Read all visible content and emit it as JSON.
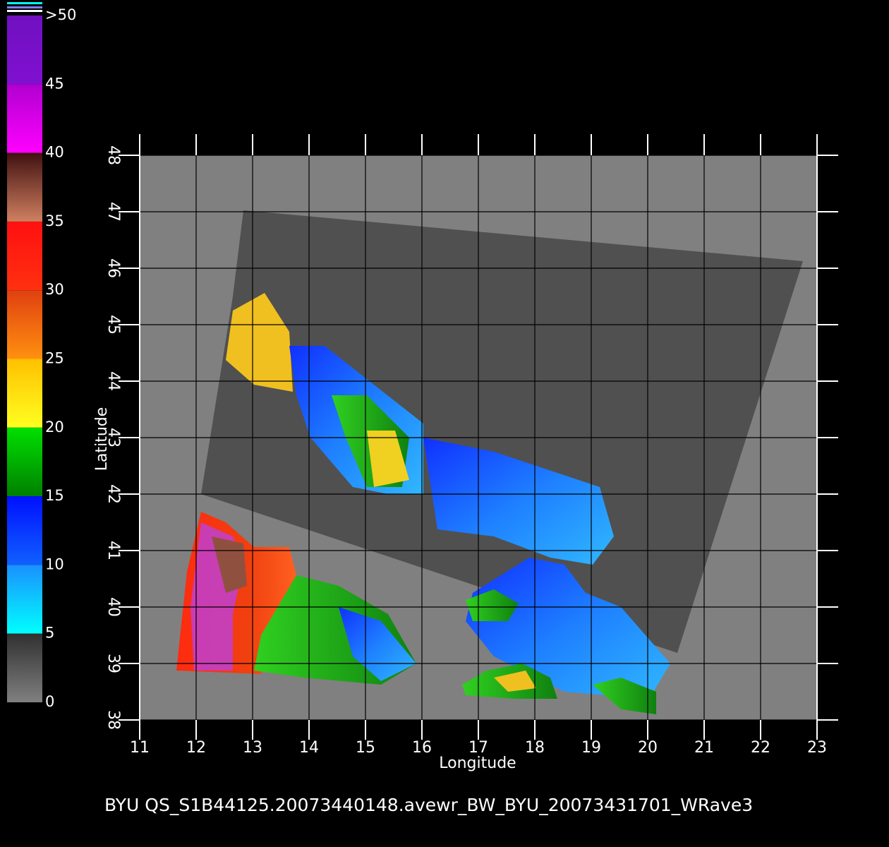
{
  "colorbar": {
    "ticks": [
      {
        "value": 50,
        "label": ">50"
      },
      45,
      40,
      35,
      30,
      25,
      20,
      15,
      10,
      5,
      0
    ],
    "lim": [
      0,
      50
    ]
  },
  "map": {
    "xlabel": "Longitude",
    "ylabel": "Latitude",
    "xlim": [
      11,
      23
    ],
    "ylim": [
      38,
      48
    ],
    "xticks": [
      11,
      12,
      13,
      14,
      15,
      16,
      17,
      18,
      19,
      20,
      21,
      22,
      23
    ],
    "yticks": [
      38,
      39,
      40,
      41,
      42,
      43,
      44,
      45,
      46,
      47,
      48
    ]
  },
  "caption": "BYU  QS_S1B44125.20073440148.avewr_BW_BYU_20073431701_WRave3"
}
